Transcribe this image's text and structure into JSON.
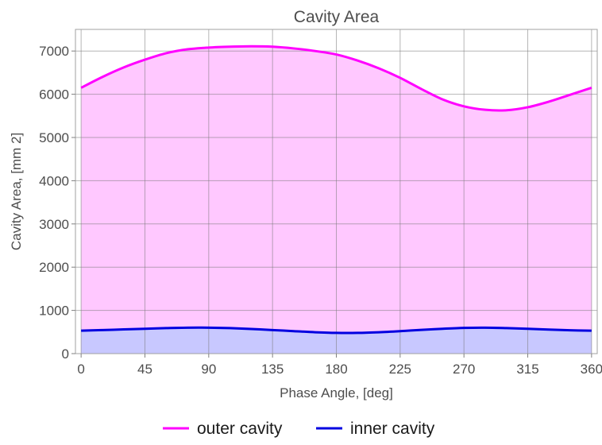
{
  "chart_data": {
    "type": "area",
    "title": "Cavity Area",
    "xlabel": "Phase Angle, [deg]",
    "ylabel": "Cavity Area, [mm 2]",
    "xlim": [
      -4,
      364
    ],
    "ylim": [
      0,
      7500
    ],
    "xticks": [
      0,
      45,
      90,
      135,
      180,
      225,
      270,
      315,
      360
    ],
    "yticks": [
      0,
      1000,
      2000,
      3000,
      4000,
      5000,
      6000,
      7000
    ],
    "grid": true,
    "legend_position": "bottom-center",
    "x": [
      0,
      15,
      30,
      45,
      60,
      75,
      90,
      105,
      120,
      135,
      150,
      165,
      180,
      195,
      210,
      225,
      240,
      255,
      270,
      285,
      300,
      315,
      330,
      345,
      360
    ],
    "series": [
      {
        "name": "outer cavity",
        "color": "#ff00ff",
        "fill": "#ffc8ff",
        "values": [
          6150,
          6400,
          6620,
          6800,
          6950,
          7040,
          7080,
          7100,
          7110,
          7100,
          7060,
          7000,
          6920,
          6780,
          6600,
          6380,
          6120,
          5880,
          5720,
          5640,
          5630,
          5700,
          5830,
          5990,
          6150
        ]
      },
      {
        "name": "inner cavity",
        "color": "#0000e0",
        "fill": "#c8c8ff",
        "values": [
          530,
          545,
          560,
          575,
          590,
          600,
          600,
          590,
          570,
          545,
          520,
          495,
          480,
          480,
          495,
          520,
          550,
          575,
          595,
          600,
          590,
          575,
          555,
          540,
          530
        ]
      }
    ]
  }
}
